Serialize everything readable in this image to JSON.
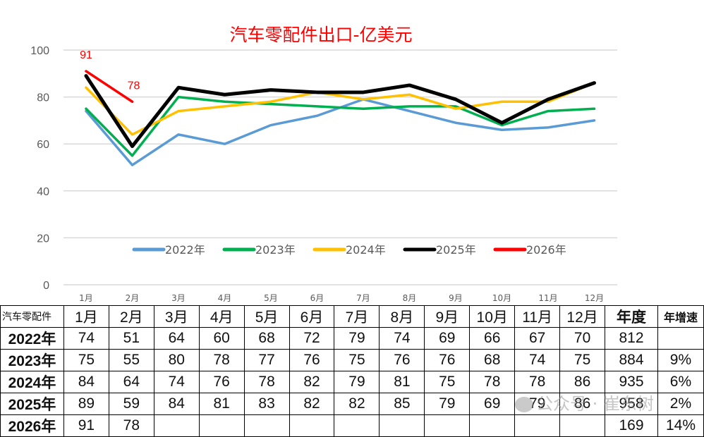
{
  "chart_data": {
    "type": "line",
    "title": "汽车零配件出口-亿美元",
    "xlabel": "",
    "ylabel": "",
    "ylim": [
      0,
      100
    ],
    "yticks": [
      0,
      20,
      40,
      60,
      80,
      100
    ],
    "grid": true,
    "legend_position": "inside-bottom",
    "categories": [
      "1月",
      "2月",
      "3月",
      "4月",
      "5月",
      "6月",
      "7月",
      "8月",
      "9月",
      "10月",
      "11月",
      "12月"
    ],
    "series": [
      {
        "name": "2022年",
        "color": "#5b9bd5",
        "values": [
          74,
          51,
          64,
          60,
          68,
          72,
          79,
          74,
          69,
          66,
          67,
          70
        ]
      },
      {
        "name": "2023年",
        "color": "#00b050",
        "values": [
          75,
          55,
          80,
          78,
          77,
          76,
          75,
          76,
          76,
          68,
          74,
          75
        ]
      },
      {
        "name": "2024年",
        "color": "#ffc000",
        "values": [
          84,
          64,
          74,
          76,
          78,
          82,
          79,
          81,
          75,
          78,
          78,
          86
        ]
      },
      {
        "name": "2025年",
        "color": "#000000",
        "values": [
          89,
          59,
          84,
          81,
          83,
          82,
          82,
          85,
          79,
          69,
          79,
          86
        ]
      },
      {
        "name": "2026年",
        "color": "#ff0000",
        "values": [
          91,
          78
        ]
      }
    ],
    "annotations": [
      {
        "series": "2026年",
        "index": 0,
        "label": "91"
      },
      {
        "series": "2026年",
        "index": 1,
        "label": "78"
      }
    ]
  },
  "table": {
    "corner": "汽车零配件",
    "months": [
      "1月",
      "2月",
      "3月",
      "4月",
      "5月",
      "6月",
      "7月",
      "8月",
      "9月",
      "10月",
      "11月",
      "12月"
    ],
    "annual_header": "年度",
    "growth_header": "年增速",
    "rows": [
      {
        "year": "2022年",
        "values": [
          "74",
          "51",
          "64",
          "60",
          "68",
          "72",
          "79",
          "74",
          "69",
          "66",
          "67",
          "70"
        ],
        "annual": "812",
        "growth": ""
      },
      {
        "year": "2023年",
        "values": [
          "75",
          "55",
          "80",
          "78",
          "77",
          "76",
          "75",
          "76",
          "76",
          "68",
          "74",
          "75"
        ],
        "annual": "884",
        "growth": "9%"
      },
      {
        "year": "2024年",
        "values": [
          "84",
          "64",
          "74",
          "76",
          "78",
          "82",
          "79",
          "81",
          "75",
          "78",
          "78",
          "86"
        ],
        "annual": "935",
        "growth": "6%"
      },
      {
        "year": "2025年",
        "values": [
          "89",
          "59",
          "84",
          "81",
          "83",
          "82",
          "82",
          "85",
          "79",
          "69",
          "79",
          "86"
        ],
        "annual": "958",
        "growth": "2%"
      },
      {
        "year": "2026年",
        "values": [
          "91",
          "78",
          "",
          "",
          "",
          "",
          "",
          "",
          "",
          "",
          "",
          ""
        ],
        "annual": "169",
        "growth": "14%"
      }
    ]
  },
  "watermark": "公众号 · 崔东树"
}
